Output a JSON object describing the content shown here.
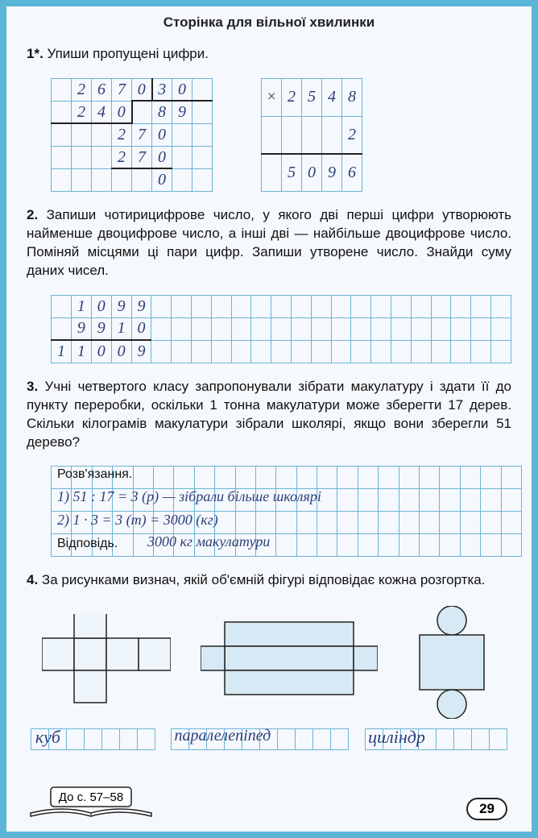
{
  "header": "Сторінка для вільної хвилинки",
  "tasks": {
    "t1": {
      "num": "1*.",
      "text": "Упиши пропущені цифри.",
      "division": [
        [
          "",
          "2",
          "6",
          "7",
          "0",
          "3",
          "0"
        ],
        [
          "",
          "2",
          "4",
          "0",
          "",
          "8",
          "9"
        ],
        [
          "",
          "",
          "",
          "2",
          "7",
          "0",
          "",
          ""
        ],
        [
          "",
          "",
          "",
          "2",
          "7",
          "0",
          "",
          ""
        ],
        [
          "",
          "",
          "",
          "",
          "",
          "0",
          "",
          ""
        ]
      ],
      "mult": [
        [
          "×",
          "2",
          "5",
          "4",
          "8"
        ],
        [
          "",
          "",
          "",
          "",
          "2"
        ],
        [
          "",
          "5",
          "0",
          "9",
          "6"
        ]
      ]
    },
    "t2": {
      "num": "2.",
      "text": "Запиши чотирицифрове число, у якого дві перші цифри утворюють найменше двоцифрове число, а інші дві — найбільше двоцифрове число. Поміняй місцями ці пари цифр. Запиши утворене число. Знайди суму даних чисел.",
      "rows": [
        [
          "",
          "1",
          "0",
          "9",
          "9"
        ],
        [
          "",
          "9",
          "9",
          "1",
          "0"
        ],
        [
          "1",
          "1",
          "0",
          "0",
          "9"
        ]
      ]
    },
    "t3": {
      "num": "3.",
      "text": "Учні четвертого класу запропонували зібрати макулатуру і здати її до пункту переробки, оскільки 1 тонна макулатури може зберегти 17 дерев. Скільки кілограмів макулатури зібрали школярі, якщо вони зберегли 51 дерево?",
      "label_sol": "Розв'язання.",
      "line1": "1) 51 : 17 = 3 (р) — зібрали більше школярі",
      "line2": "2) 1 · 3 = 3 (т) = 3000 (кг)",
      "label_ans": "Відповідь.",
      "ans": "3000 кг макулатури"
    },
    "t4": {
      "num": "4.",
      "text": "За рисунками визнач, якій об'ємній фігурі відповідає кожна розгортка.",
      "answers": [
        "куб",
        "паралелепіпед",
        "циліндр"
      ]
    }
  },
  "footer": {
    "ref": "До с. 57–58",
    "page": "29"
  },
  "colors": {
    "grid": "#6bb4d8",
    "ink": "#2c3e7a",
    "print": "#111111",
    "frame": "#5bb5d6",
    "shape_fill": "#d7e9f4"
  }
}
